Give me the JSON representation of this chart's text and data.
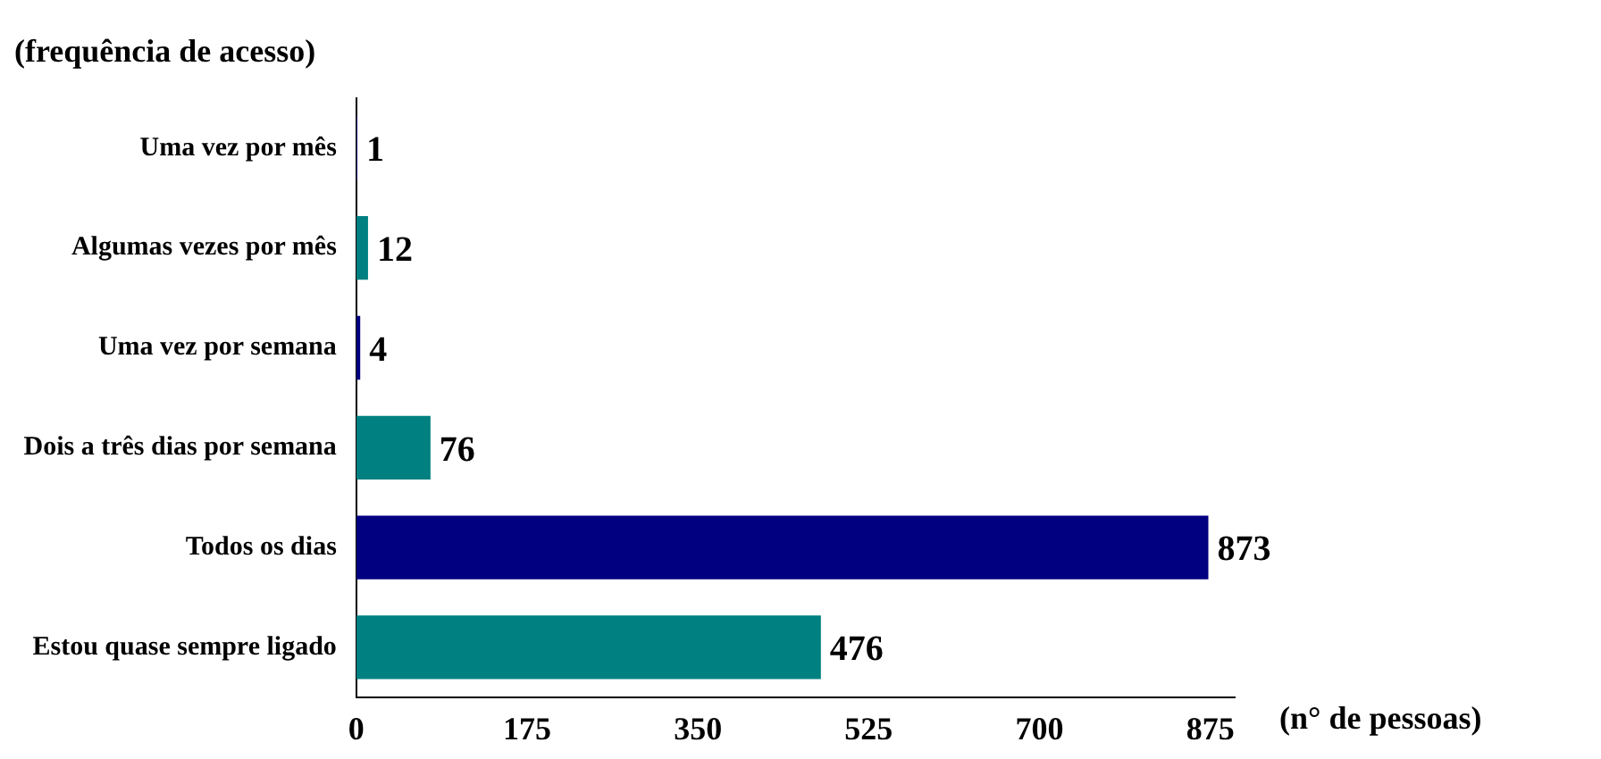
{
  "chart_data": {
    "type": "bar",
    "orientation": "horizontal",
    "xlabel": "(n° de pessoas)",
    "ylabel": "(frequência de acesso)",
    "categories": [
      "Uma vez por mês",
      "Algumas vezes por mês",
      "Uma vez por semana",
      "Dois a três dias por semana",
      "Todos os dias",
      "Estou quase sempre ligado"
    ],
    "values": [
      1,
      12,
      4,
      76,
      873,
      476
    ],
    "colors": [
      "#000080",
      "#008080",
      "#000080",
      "#008080",
      "#000080",
      "#008080"
    ],
    "xlim": [
      0,
      900
    ],
    "xticks": [
      0,
      175,
      350,
      525,
      700,
      875
    ],
    "data_labels": true,
    "grid": false,
    "legend": false
  }
}
